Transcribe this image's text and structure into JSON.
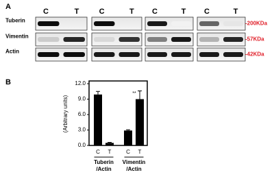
{
  "panel_a": {
    "label": "A",
    "columns": [
      "C",
      "T",
      "C",
      "T",
      "C",
      "T",
      "C",
      "T"
    ],
    "rows": [
      "Tuberin",
      "Vimentin",
      "Actin"
    ],
    "sizes": [
      "-200KDa",
      "-57KDa",
      "-42KDa"
    ]
  },
  "chart_data": {
    "type": "bar",
    "panel_label": "B",
    "ylabel": "(Arbitrary units)",
    "categories": [
      "C",
      "T",
      "C",
      "T"
    ],
    "values": [
      9.9,
      0.5,
      2.9,
      9.0
    ],
    "errors": [
      0.6,
      0.1,
      0.15,
      1.6
    ],
    "groups": [
      [
        "Tuberin",
        "/Actin"
      ],
      [
        "Vimentin",
        "/Actin"
      ]
    ],
    "annotation": "**",
    "color": "#000000",
    "ylim": [
      0,
      12
    ],
    "yticks": [
      {
        "value": 0,
        "label": "0.0"
      },
      {
        "value": 3,
        "label": "3.0"
      },
      {
        "value": 6,
        "label": "6.0"
      },
      {
        "value": 9,
        "label": "9.0"
      },
      {
        "value": 12,
        "label": "12.0"
      }
    ]
  }
}
